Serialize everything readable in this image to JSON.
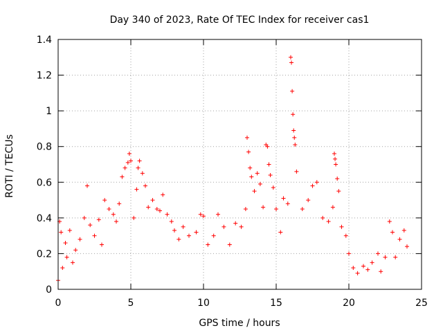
{
  "chart_data": {
    "type": "scatter",
    "title": "Day 340 of 2023, Rate Of TEC Index for receiver cas1",
    "xlabel": "GPS time / hours",
    "ylabel": "ROTI / TECUs",
    "xlim": [
      0,
      25
    ],
    "ylim": [
      0,
      1.4
    ],
    "xticks": [
      0,
      5,
      10,
      15,
      20,
      25
    ],
    "xtick_labels": [
      "0",
      "5",
      "10",
      "15",
      "20",
      "25"
    ],
    "yticks": [
      0,
      0.2,
      0.4,
      0.6,
      0.8,
      1.0,
      1.2,
      1.4
    ],
    "ytick_labels": [
      "0",
      "0.2",
      "0.4",
      "0.6",
      "0.8",
      "1",
      "1.2",
      "1.4"
    ],
    "grid": true,
    "marker": "+",
    "color": "#ff0000",
    "series": [
      {
        "values": [
          [
            0.0,
            0.05
          ],
          [
            0.1,
            0.38
          ],
          [
            0.2,
            0.32
          ],
          [
            0.3,
            0.12
          ],
          [
            0.5,
            0.26
          ],
          [
            0.6,
            0.18
          ],
          [
            0.8,
            0.33
          ],
          [
            1.0,
            0.15
          ],
          [
            1.2,
            0.22
          ],
          [
            1.5,
            0.28
          ],
          [
            1.8,
            0.4
          ],
          [
            2.0,
            0.58
          ],
          [
            2.2,
            0.36
          ],
          [
            2.5,
            0.3
          ],
          [
            2.8,
            0.39
          ],
          [
            3.0,
            0.25
          ],
          [
            3.2,
            0.5
          ],
          [
            3.5,
            0.45
          ],
          [
            3.8,
            0.42
          ],
          [
            4.0,
            0.38
          ],
          [
            4.2,
            0.48
          ],
          [
            4.4,
            0.63
          ],
          [
            4.6,
            0.68
          ],
          [
            4.8,
            0.71
          ],
          [
            4.9,
            0.76
          ],
          [
            5.0,
            0.72
          ],
          [
            5.2,
            0.4
          ],
          [
            5.4,
            0.56
          ],
          [
            5.5,
            0.68
          ],
          [
            5.6,
            0.72
          ],
          [
            5.8,
            0.65
          ],
          [
            6.0,
            0.58
          ],
          [
            6.2,
            0.46
          ],
          [
            6.5,
            0.5
          ],
          [
            6.8,
            0.45
          ],
          [
            7.0,
            0.44
          ],
          [
            7.2,
            0.53
          ],
          [
            7.5,
            0.42
          ],
          [
            7.8,
            0.38
          ],
          [
            8.0,
            0.33
          ],
          [
            8.3,
            0.28
          ],
          [
            8.6,
            0.35
          ],
          [
            9.0,
            0.3
          ],
          [
            9.5,
            0.32
          ],
          [
            9.8,
            0.42
          ],
          [
            10.0,
            0.41
          ],
          [
            10.3,
            0.25
          ],
          [
            10.7,
            0.3
          ],
          [
            11.0,
            0.42
          ],
          [
            11.4,
            0.35
          ],
          [
            11.8,
            0.25
          ],
          [
            12.2,
            0.37
          ],
          [
            12.6,
            0.35
          ],
          [
            12.9,
            0.45
          ],
          [
            13.0,
            0.85
          ],
          [
            13.1,
            0.77
          ],
          [
            13.2,
            0.68
          ],
          [
            13.3,
            0.63
          ],
          [
            13.5,
            0.55
          ],
          [
            13.7,
            0.65
          ],
          [
            13.9,
            0.59
          ],
          [
            14.1,
            0.46
          ],
          [
            14.3,
            0.81
          ],
          [
            14.4,
            0.8
          ],
          [
            14.5,
            0.7
          ],
          [
            14.6,
            0.64
          ],
          [
            14.8,
            0.57
          ],
          [
            15.0,
            0.45
          ],
          [
            15.3,
            0.32
          ],
          [
            15.5,
            0.51
          ],
          [
            15.8,
            0.48
          ],
          [
            16.0,
            1.3
          ],
          [
            16.05,
            1.27
          ],
          [
            16.1,
            1.11
          ],
          [
            16.15,
            0.98
          ],
          [
            16.2,
            0.89
          ],
          [
            16.25,
            0.85
          ],
          [
            16.3,
            0.81
          ],
          [
            16.4,
            0.66
          ],
          [
            16.8,
            0.45
          ],
          [
            17.2,
            0.5
          ],
          [
            17.5,
            0.58
          ],
          [
            17.8,
            0.6
          ],
          [
            18.2,
            0.4
          ],
          [
            18.6,
            0.38
          ],
          [
            18.9,
            0.46
          ],
          [
            19.0,
            0.76
          ],
          [
            19.05,
            0.73
          ],
          [
            19.1,
            0.7
          ],
          [
            19.2,
            0.62
          ],
          [
            19.3,
            0.55
          ],
          [
            19.5,
            0.35
          ],
          [
            19.8,
            0.3
          ],
          [
            20.0,
            0.2
          ],
          [
            20.3,
            0.12
          ],
          [
            20.6,
            0.09
          ],
          [
            21.0,
            0.13
          ],
          [
            21.3,
            0.11
          ],
          [
            21.6,
            0.15
          ],
          [
            22.0,
            0.2
          ],
          [
            22.2,
            0.1
          ],
          [
            22.5,
            0.18
          ],
          [
            22.8,
            0.38
          ],
          [
            23.0,
            0.32
          ],
          [
            23.2,
            0.18
          ],
          [
            23.5,
            0.28
          ],
          [
            23.8,
            0.33
          ],
          [
            24.0,
            0.24
          ]
        ]
      }
    ]
  }
}
